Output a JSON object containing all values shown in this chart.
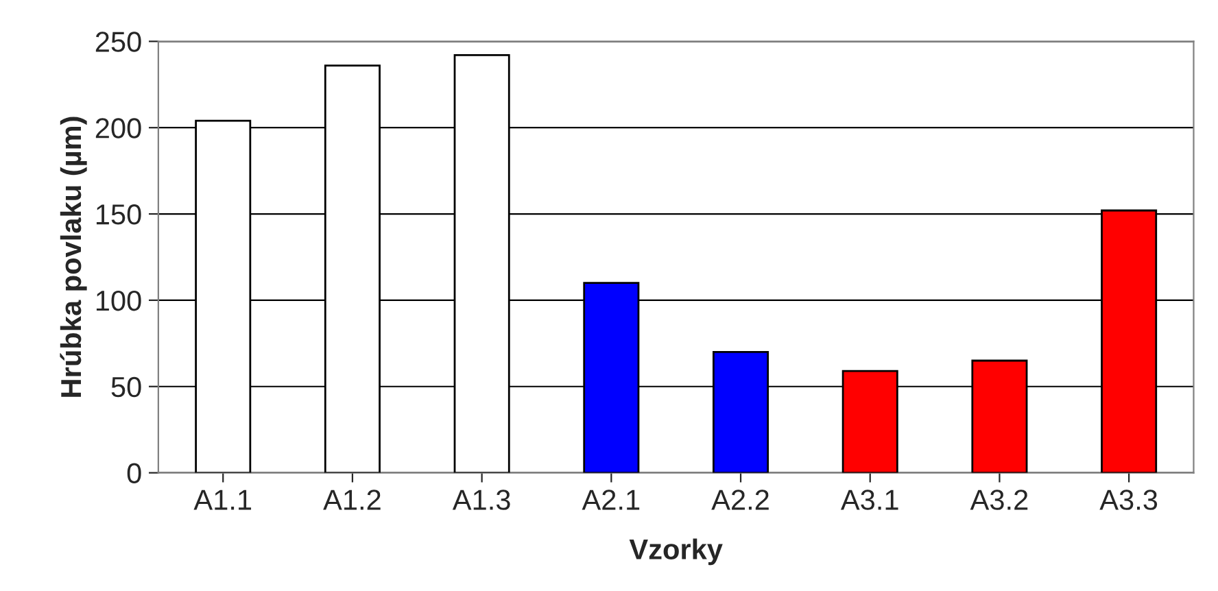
{
  "chart_data": {
    "type": "bar",
    "categories": [
      "A1.1",
      "A1.2",
      "A1.3",
      "A2.1",
      "A2.2",
      "A3.1",
      "A3.2",
      "A3.3"
    ],
    "values": [
      204,
      236,
      242,
      110,
      70,
      59,
      65,
      152
    ],
    "colors": [
      "#ffffff",
      "#ffffff",
      "#ffffff",
      "#0000ff",
      "#0000ff",
      "#ff0000",
      "#ff0000",
      "#ff0000"
    ],
    "xlabel": "Vzorky",
    "ylabel": "Hrúbka povlaku (µm)",
    "ylim": [
      0,
      250
    ],
    "yticks": [
      0,
      50,
      100,
      150,
      200,
      250
    ],
    "grid": "y"
  }
}
